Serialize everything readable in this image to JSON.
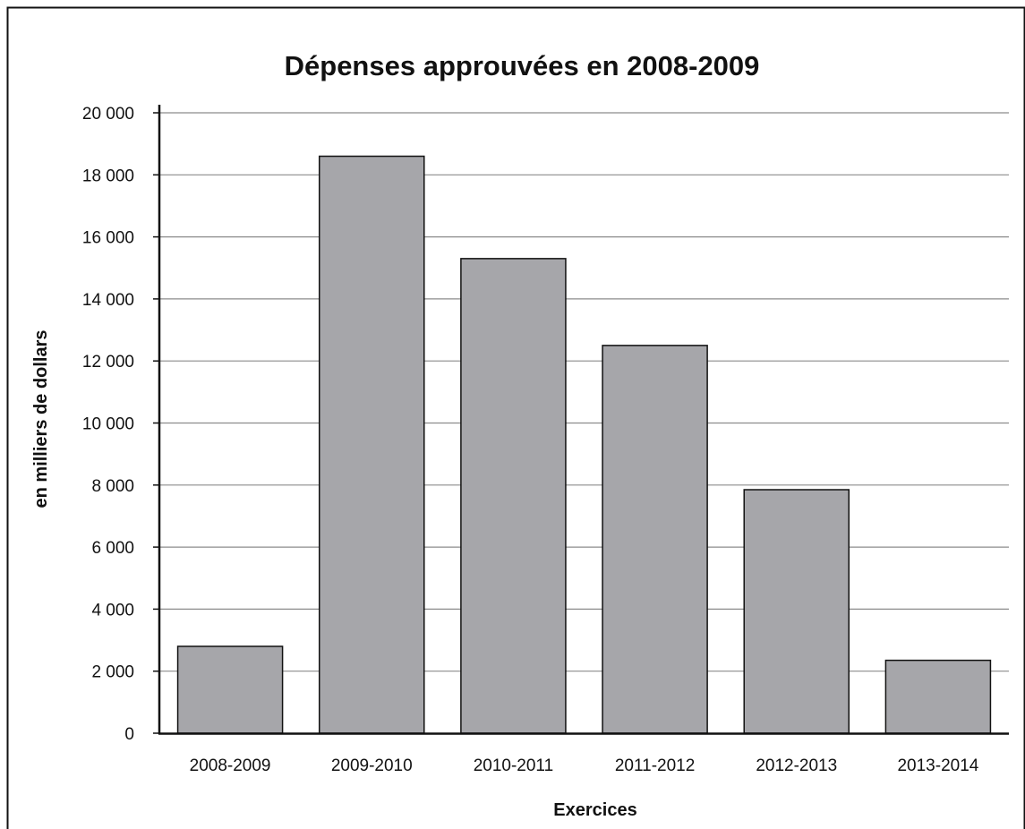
{
  "chart_data": {
    "type": "bar",
    "title": "Dépenses approuvées en 2008-2009",
    "xlabel": "Exercices",
    "ylabel": "en milliers de dollars",
    "categories": [
      "2008-2009",
      "2009-2010",
      "2010-2011",
      "2011-2012",
      "2012-2013",
      "2013-2014"
    ],
    "values": [
      2800,
      18600,
      15300,
      12500,
      7850,
      2350
    ],
    "ylim": [
      0,
      20000
    ],
    "yticks": [
      0,
      2000,
      4000,
      6000,
      8000,
      10000,
      12000,
      14000,
      16000,
      18000,
      20000
    ],
    "ytick_labels": [
      "0",
      "2 000",
      "4 000",
      "6 000",
      "8 000",
      "10 000",
      "12 000",
      "14 000",
      "16 000",
      "18 000",
      "20 000"
    ],
    "grid": true,
    "legend": "none",
    "bar_color": "#a6a6aa",
    "bar_edge_color": "#111111",
    "grid_color": "#8c8c8c"
  }
}
